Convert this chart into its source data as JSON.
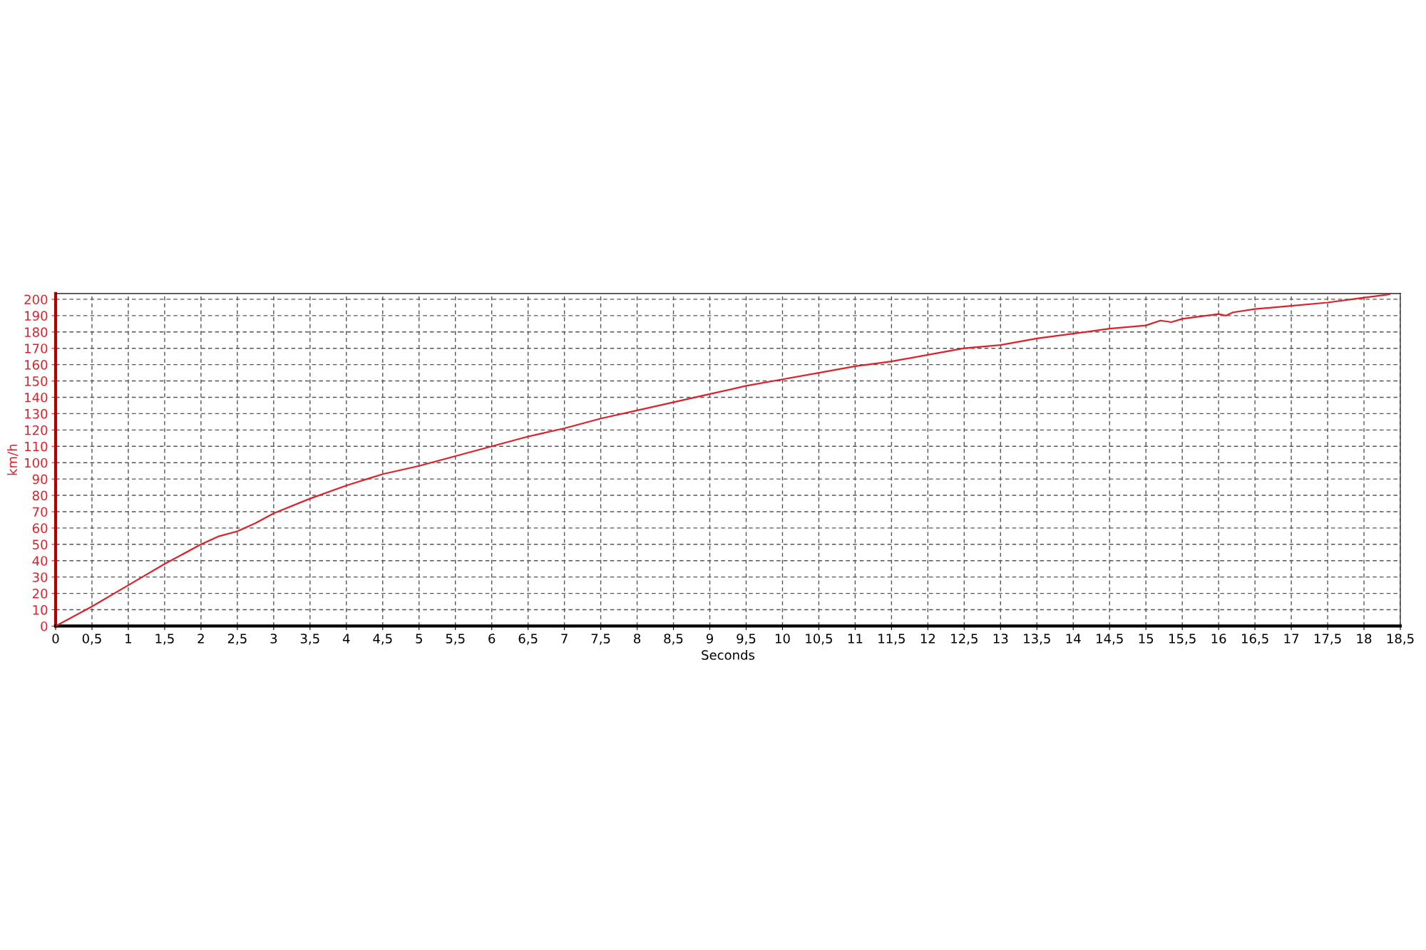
{
  "chart_data": {
    "type": "line",
    "xlabel": "Seconds",
    "ylabel": "km/h",
    "series": [
      {
        "color": "#e0202a",
        "x": [
          0,
          0.5,
          1,
          1.5,
          2,
          2.25,
          2.5,
          2.75,
          3,
          3.5,
          4,
          4.5,
          5,
          5.5,
          6,
          6.5,
          7,
          7.5,
          8,
          8.5,
          9,
          9.5,
          10,
          10.5,
          11,
          11.5,
          12,
          12.5,
          13,
          13.5,
          14,
          14.5,
          15,
          15.2,
          15.35,
          15.5,
          16,
          16.1,
          16.2,
          16.5,
          17,
          17.5,
          18,
          18.35
        ],
        "values": [
          0,
          12,
          25,
          38,
          50,
          55,
          58,
          63,
          69,
          78,
          86,
          93,
          98,
          104,
          110,
          116,
          121,
          127,
          132,
          137,
          142,
          147,
          151,
          155,
          159,
          162,
          166,
          170,
          172,
          176,
          179,
          182,
          184,
          187,
          186,
          188,
          191,
          190,
          192,
          194,
          196,
          198,
          201,
          203
        ]
      }
    ],
    "xlim": [
      0,
      18.5
    ],
    "ylim": [
      0,
      203.5
    ],
    "xticks": [
      0,
      {
        "value": 0.5,
        "label": "0,5"
      },
      1,
      {
        "value": 1.5,
        "label": "1,5"
      },
      2,
      {
        "value": 2.5,
        "label": "2,5"
      },
      3,
      {
        "value": 3.5,
        "label": "3,5"
      },
      4,
      {
        "value": 4.5,
        "label": "4,5"
      },
      5,
      {
        "value": 5.5,
        "label": "5,5"
      },
      6,
      {
        "value": 6.5,
        "label": "6,5"
      },
      7,
      {
        "value": 7.5,
        "label": "7,5"
      },
      8,
      {
        "value": 8.5,
        "label": "8,5"
      },
      9,
      {
        "value": 9.5,
        "label": "9,5"
      },
      10,
      {
        "value": 10.5,
        "label": "10,5"
      },
      11,
      {
        "value": 11.5,
        "label": "11,5"
      },
      12,
      {
        "value": 12.5,
        "label": "12,5"
      },
      13,
      {
        "value": 13.5,
        "label": "13,5"
      },
      14,
      {
        "value": 14.5,
        "label": "14,5"
      },
      15,
      {
        "value": 15.5,
        "label": "15,5"
      },
      16,
      {
        "value": 16.5,
        "label": "16,5"
      },
      17,
      {
        "value": 17.5,
        "label": "17,5"
      },
      18,
      {
        "value": 18.5,
        "label": "18,5"
      }
    ],
    "yticks": [
      0,
      10,
      20,
      30,
      40,
      50,
      60,
      70,
      80,
      90,
      100,
      110,
      120,
      130,
      140,
      150,
      160,
      170,
      180,
      190,
      200
    ],
    "grid": true,
    "line_style": "solid",
    "marker": "none"
  }
}
